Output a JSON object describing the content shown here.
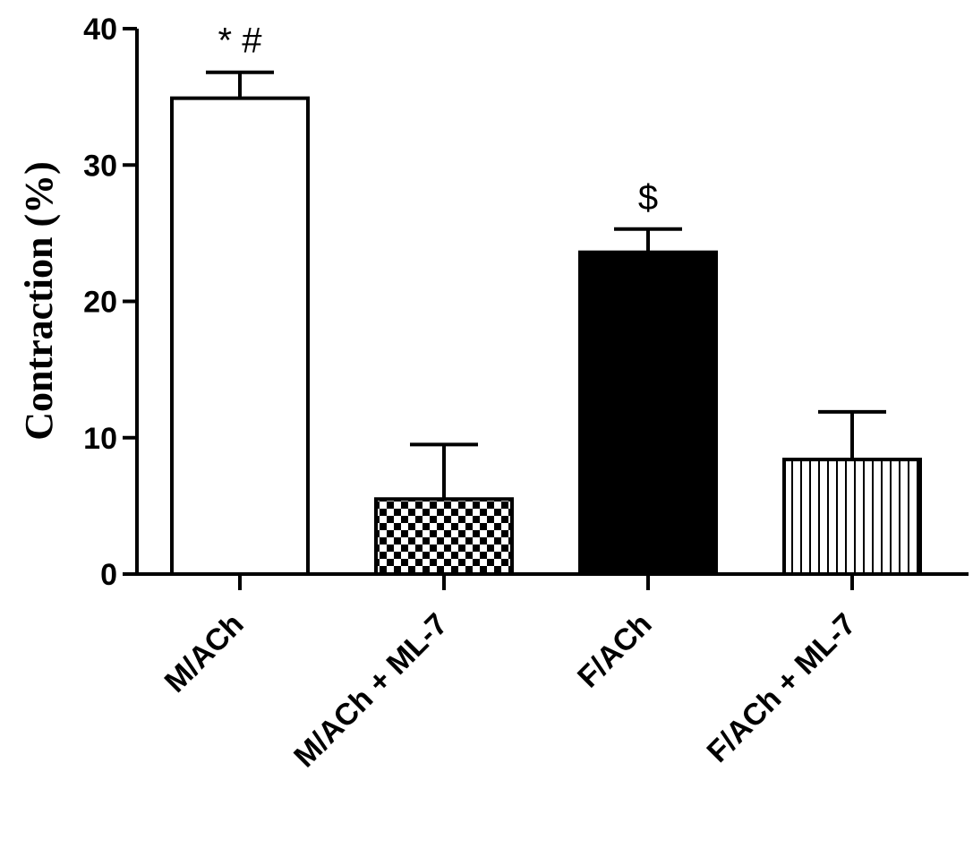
{
  "chart_data": {
    "type": "bar",
    "categories": [
      "M/ACh",
      "M/ACh + ML-7",
      "F/ACh",
      "F/ACh + ML-7"
    ],
    "values": [
      34.9,
      5.5,
      23.6,
      8.4
    ],
    "errors": [
      1.9,
      4.0,
      1.7,
      3.5
    ],
    "annotations": [
      "* #",
      "",
      "$",
      ""
    ],
    "fills": [
      "white",
      "checker",
      "black",
      "vertical-stripes"
    ],
    "ylabel": "Contraction (%)",
    "xlabel": "",
    "title": "",
    "ylim": [
      0,
      40
    ],
    "yticks": [
      0,
      10,
      20,
      30,
      40
    ],
    "grid": false
  }
}
